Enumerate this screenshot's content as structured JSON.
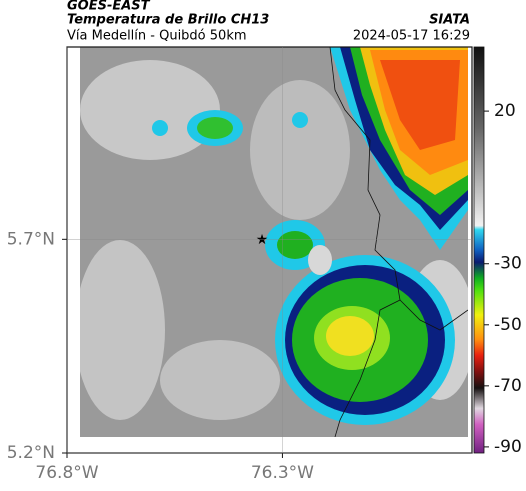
{
  "header": {
    "title": "GOES-EAST",
    "subtitle": "Temperatura de Brillo CH13",
    "source": "SIATA",
    "route": "Vía Medellín - Quibdó 50km",
    "timestamp": "2024-05-17 16:29"
  },
  "map": {
    "xlim": [
      -76.8,
      -75.86
    ],
    "ylim": [
      5.2,
      6.15
    ],
    "xticks": [
      {
        "value": -76.8,
        "label": "76.8°W"
      },
      {
        "value": -76.3,
        "label": "76.3°W"
      }
    ],
    "yticks": [
      {
        "value": 5.2,
        "label": "5.2°N"
      },
      {
        "value": 5.7,
        "label": "5.7°N"
      }
    ],
    "grid": true
  },
  "colorbar": {
    "lim": [
      41,
      -92
    ],
    "ticks": [
      20,
      -30,
      -50,
      -70,
      -90
    ]
  }
}
